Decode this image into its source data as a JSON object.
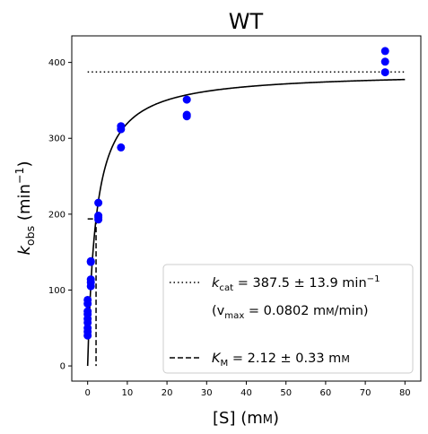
{
  "chart_data": {
    "type": "scatter",
    "title": "WT",
    "xlabel": {
      "base": "[S] (m",
      "smallcaps": "M",
      "close": ")"
    },
    "ylabel": {
      "k": "k",
      "sub": "obs",
      "unit": " (min",
      "sup": "−1",
      "close": ")"
    },
    "xlim": [
      -4,
      84
    ],
    "ylim": [
      -20,
      435
    ],
    "xticks": [
      0,
      10,
      20,
      30,
      40,
      50,
      60,
      70,
      80
    ],
    "yticks": [
      0,
      100,
      200,
      300,
      400
    ],
    "grid": false,
    "series": [
      {
        "kind": "points",
        "color": "#0000ff",
        "points": [
          [
            0.0,
            40
          ],
          [
            0.0,
            45
          ],
          [
            0.0,
            50
          ],
          [
            0.0,
            57
          ],
          [
            0.0,
            62
          ],
          [
            0.0,
            68
          ],
          [
            0.0,
            72
          ],
          [
            0.0,
            82
          ],
          [
            0.0,
            87
          ],
          [
            0.8,
            105
          ],
          [
            0.8,
            110
          ],
          [
            0.8,
            114
          ],
          [
            0.8,
            137
          ],
          [
            0.8,
            138
          ],
          [
            2.7,
            193
          ],
          [
            2.7,
            196
          ],
          [
            2.7,
            198
          ],
          [
            2.7,
            215
          ],
          [
            8.4,
            288
          ],
          [
            8.4,
            312
          ],
          [
            8.4,
            316
          ],
          [
            25,
            329
          ],
          [
            25,
            331
          ],
          [
            25,
            351
          ],
          [
            75,
            387
          ],
          [
            75,
            401
          ],
          [
            75,
            415
          ]
        ]
      },
      {
        "kind": "michaelis-menten-fit",
        "color": "#000000",
        "kcat": 387.5,
        "km": 2.12,
        "x_range": [
          0,
          80
        ]
      },
      {
        "kind": "kcat-line",
        "color": "#000000",
        "y": 387.5,
        "x_range": [
          0,
          80
        ]
      },
      {
        "kind": "km-markers",
        "color": "#000000",
        "x": 2.12,
        "y": 193.75
      }
    ],
    "legend": {
      "placement": "lower-right",
      "kcat": {
        "k": "k",
        "sub": "cat",
        "text": " = 387.5 ± 13.9 min",
        "sup": "−1"
      },
      "vmax": {
        "open": "(v",
        "sub": "max",
        "text": " = 0.0802 m",
        "smallcaps": "M",
        "close": "/min)"
      },
      "km": {
        "k": "K",
        "sub": "M",
        "text": " = 2.12 ± 0.33 m",
        "smallcaps": "M"
      }
    }
  }
}
